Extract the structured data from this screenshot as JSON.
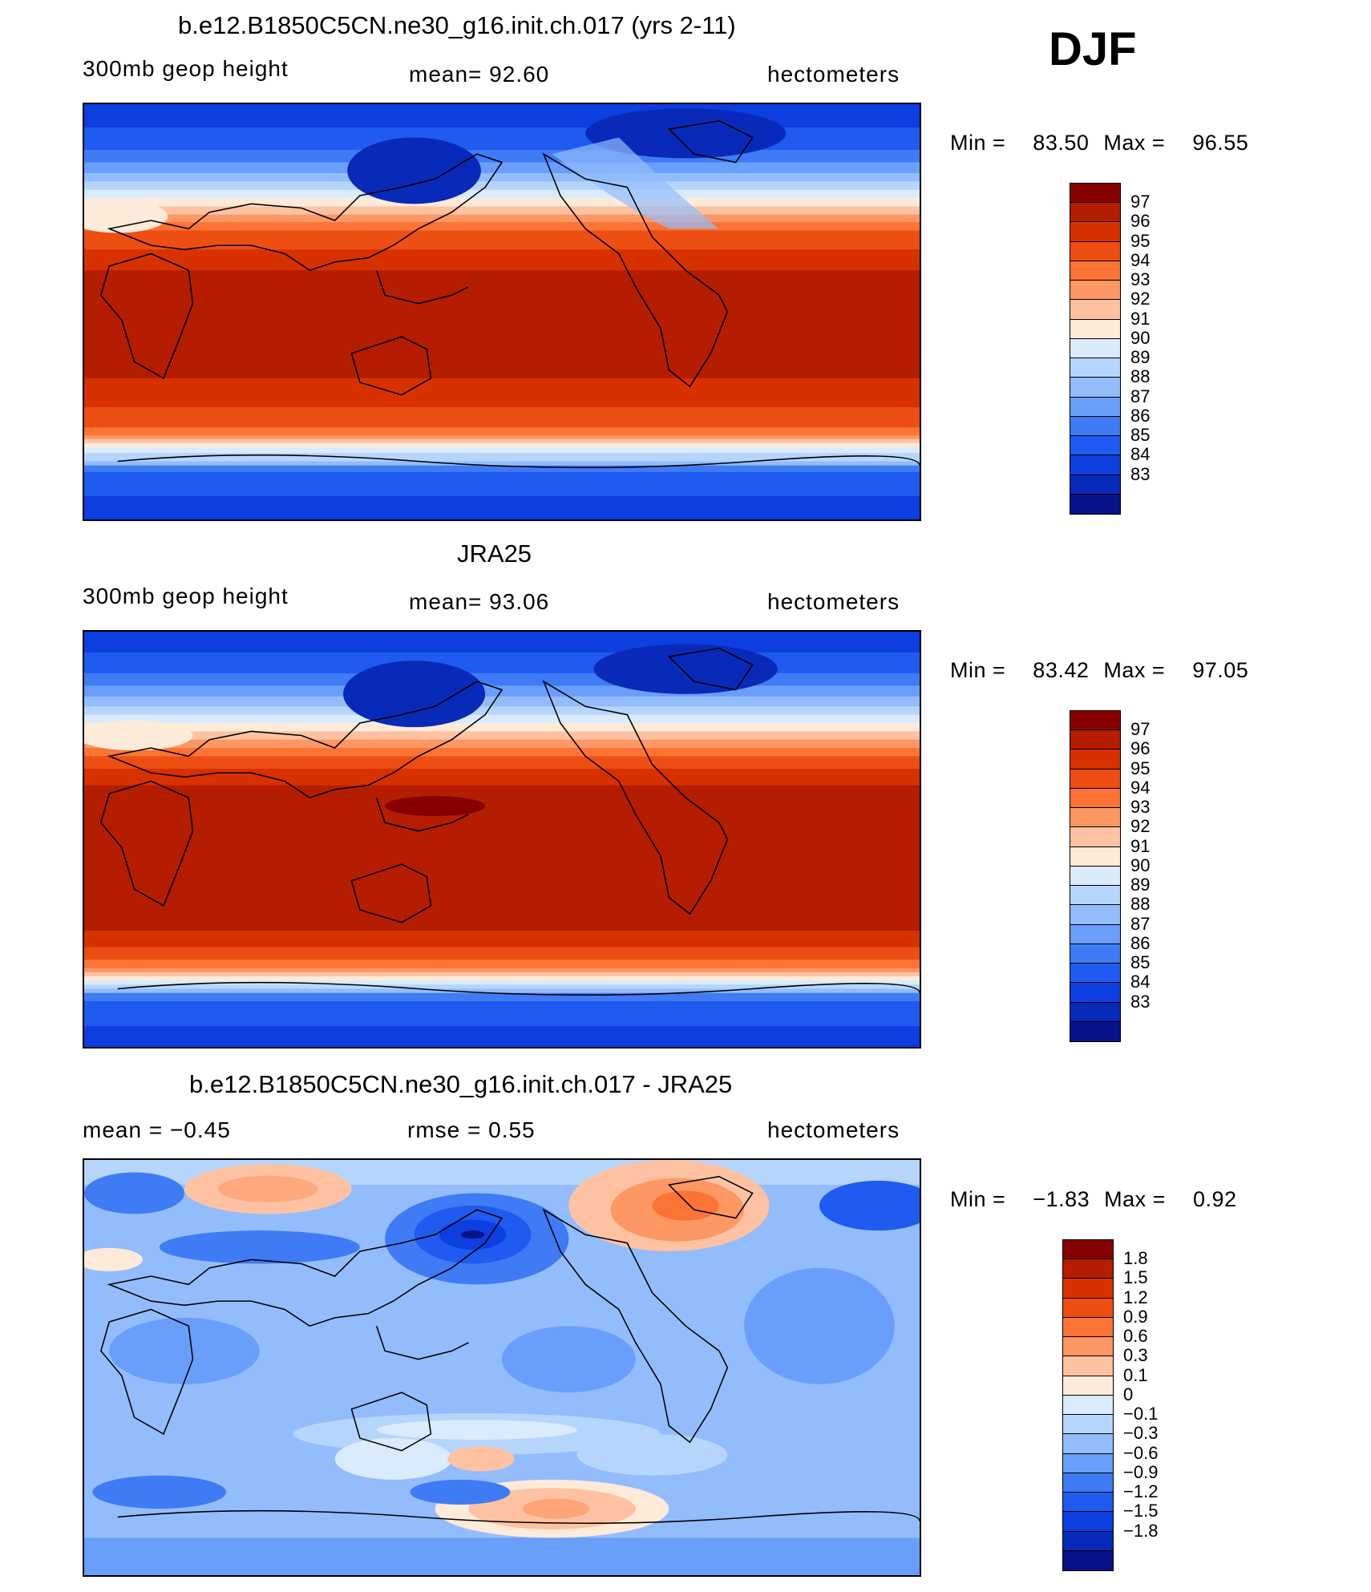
{
  "season": "DJF",
  "palette_warm": [
    "#860000",
    "#b41d00",
    "#d83100",
    "#ed4f12",
    "#fb7335",
    "#fd9764",
    "#fec2a2",
    "#feead9"
  ],
  "palette_cool": [
    "#d9ebfc",
    "#b6d5fc",
    "#93bcfc",
    "#6a9efc",
    "#3f7bf5",
    "#1f5bf0",
    "#0c3ee0",
    "#0929b8",
    "#07128a"
  ],
  "panels": [
    {
      "title": "b.e12.B1850C5CN.ne30_g16.init.ch.017 (yrs 2-11)",
      "left_label": "300mb  geop  height",
      "center_label": "mean=   92.60",
      "units": "hectometers",
      "min_label": "Min  =",
      "min_value": "83.50",
      "max_label": "Max  =",
      "max_value": "96.55",
      "colorbar": [
        "97",
        "96",
        "95",
        "94",
        "93",
        "92",
        "91",
        "90",
        "89",
        "88",
        "87",
        "86",
        "85",
        "84",
        "83"
      ]
    },
    {
      "title": "JRA25",
      "left_label": "300mb  geop  height",
      "center_label": "mean=   93.06",
      "units": "hectometers",
      "min_label": "Min  =",
      "min_value": "83.42",
      "max_label": "Max  =",
      "max_value": "97.05",
      "colorbar": [
        "97",
        "96",
        "95",
        "94",
        "93",
        "92",
        "91",
        "90",
        "89",
        "88",
        "87",
        "86",
        "85",
        "84",
        "83"
      ]
    },
    {
      "title": "b.e12.B1850C5CN.ne30_g16.init.ch.017 - JRA25",
      "left_label": "mean  =    −0.45",
      "center_label": "rmse  =      0.55",
      "units": "hectometers",
      "min_label": "Min  =",
      "min_value": "−1.83",
      "max_label": "Max  =",
      "max_value": "0.92",
      "colorbar": [
        "1.8",
        "1.5",
        "1.2",
        "0.9",
        "0.6",
        "0.3",
        "0.1",
        "0",
        "−0.1",
        "−0.3",
        "−0.6",
        "−0.9",
        "−1.2",
        "−1.5",
        "−1.8"
      ]
    }
  ]
}
